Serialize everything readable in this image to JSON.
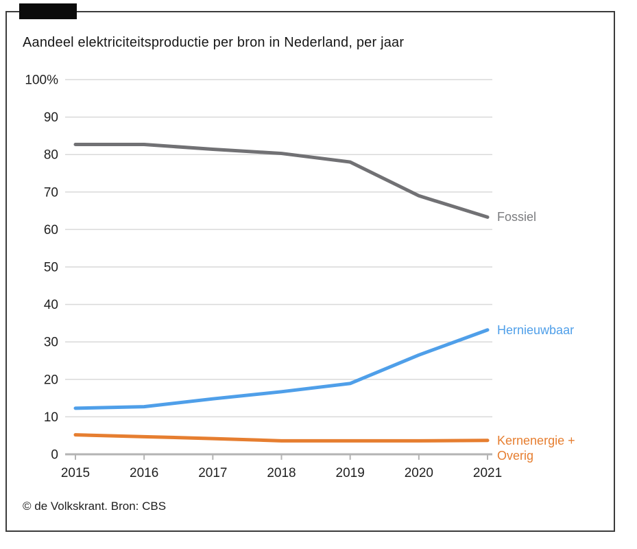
{
  "header": {
    "title": "Aandeel elektriciteitsproductie per bron in Nederland, per jaar"
  },
  "footer": {
    "credit": "© de Volkskrant. Bron: CBS"
  },
  "logo_bar": {
    "color": "#0b0b0b"
  },
  "frame": {
    "border_color": "#3b3b3b",
    "background": "#ffffff"
  },
  "chart_data": {
    "type": "line",
    "title": "Aandeel elektriciteitsproductie per bron in Nederland, per jaar",
    "x": [
      2015,
      2016,
      2017,
      2018,
      2019,
      2020,
      2021
    ],
    "xtick_labels": [
      "2015",
      "2016",
      "2017",
      "2018",
      "2019",
      "2020",
      "2021"
    ],
    "ytick_values": [
      0,
      10,
      20,
      30,
      40,
      50,
      60,
      70,
      80,
      90,
      100
    ],
    "ytick_labels": [
      "0",
      "10",
      "20",
      "30",
      "40",
      "50",
      "60",
      "70",
      "80",
      "90",
      "100%"
    ],
    "ylim": [
      0,
      100
    ],
    "grid": true,
    "legend_position": "end-of-line",
    "axis_color": "#b3b3b3",
    "grid_color": "#d9d9d9",
    "tick_label_color": "#1f1f1f",
    "series": [
      {
        "name": "Fossiel",
        "color": "#717174",
        "values": [
          82.7,
          82.7,
          81.4,
          80.3,
          78.0,
          69.0,
          63.3
        ]
      },
      {
        "name": "Hernieuwbaar",
        "color": "#4f9fe9",
        "values": [
          12.3,
          12.7,
          14.8,
          16.7,
          18.9,
          26.5,
          33.2
        ]
      },
      {
        "name": "Kernenergie + Overig",
        "color": "#e67e30",
        "values": [
          5.2,
          4.7,
          4.2,
          3.6,
          3.6,
          3.6,
          3.7
        ]
      }
    ]
  }
}
